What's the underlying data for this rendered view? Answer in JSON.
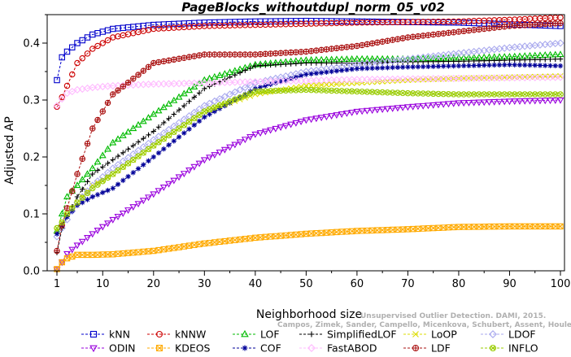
{
  "chart_data": {
    "type": "line",
    "title": "PageBlocks_withoutdupl_norm_05_v02",
    "xlabel": "Neighborhood size",
    "ylabel": "Adjusted AP",
    "xlim": [
      1,
      100
    ],
    "ylim": [
      0,
      0.45
    ],
    "x_ticks": [
      1,
      10,
      20,
      30,
      40,
      50,
      60,
      70,
      80,
      90,
      100
    ],
    "y_ticks": [
      0.0,
      0.1,
      0.2,
      0.3,
      0.4
    ],
    "y_tick_labels": [
      "0.0",
      "0.1",
      "0.2",
      "0.3",
      "0.4"
    ],
    "grid": false,
    "legend_placement": "bottom",
    "watermark": {
      "line1": "Unsupervised Outlier Detection. DAMI, 2015.",
      "line2": "Campos, Zimek, Sander, Campello, Micenkova, Schubert, Assent, Houle"
    },
    "series": [
      {
        "name": "kNN",
        "color": "#0000cc",
        "marker": "square",
        "x": [
          1,
          2,
          3,
          5,
          8,
          12,
          20,
          30,
          40,
          50,
          60,
          70,
          80,
          90,
          100
        ],
        "values": [
          0.335,
          0.375,
          0.385,
          0.4,
          0.415,
          0.425,
          0.432,
          0.436,
          0.438,
          0.439,
          0.438,
          0.437,
          0.436,
          0.433,
          0.43
        ]
      },
      {
        "name": "kNNW",
        "color": "#cc0000",
        "marker": "circle",
        "x": [
          1,
          2,
          3,
          5,
          8,
          12,
          20,
          30,
          40,
          50,
          60,
          70,
          80,
          90,
          100
        ],
        "values": [
          0.288,
          0.305,
          0.325,
          0.365,
          0.39,
          0.41,
          0.425,
          0.43,
          0.432,
          0.434,
          0.436,
          0.437,
          0.438,
          0.441,
          0.445
        ]
      },
      {
        "name": "LOF",
        "color": "#00bb00",
        "marker": "triangle-up",
        "x": [
          1,
          2,
          3,
          5,
          8,
          12,
          20,
          30,
          40,
          50,
          60,
          70,
          80,
          90,
          100
        ],
        "values": [
          0.07,
          0.1,
          0.13,
          0.15,
          0.18,
          0.225,
          0.275,
          0.335,
          0.362,
          0.37,
          0.372,
          0.372,
          0.374,
          0.376,
          0.38
        ]
      },
      {
        "name": "SimplifiedLOF",
        "color": "#000000",
        "marker": "plus",
        "x": [
          1,
          2,
          3,
          5,
          8,
          12,
          20,
          30,
          40,
          50,
          60,
          70,
          80,
          90,
          100
        ],
        "values": [
          0.032,
          0.075,
          0.095,
          0.13,
          0.17,
          0.195,
          0.245,
          0.32,
          0.36,
          0.365,
          0.365,
          0.367,
          0.368,
          0.37,
          0.372
        ]
      },
      {
        "name": "LoOP",
        "color": "#dddd00",
        "marker": "cross",
        "x": [
          1,
          2,
          3,
          5,
          8,
          12,
          20,
          30,
          40,
          50,
          60,
          70,
          80,
          90,
          100
        ],
        "values": [
          0.07,
          0.085,
          0.1,
          0.12,
          0.15,
          0.17,
          0.22,
          0.28,
          0.31,
          0.325,
          0.33,
          0.335,
          0.338,
          0.34,
          0.342
        ]
      },
      {
        "name": "LDOF",
        "color": "#aaaaee",
        "marker": "diamond",
        "x": [
          1,
          2,
          3,
          5,
          8,
          12,
          20,
          30,
          40,
          50,
          60,
          70,
          80,
          90,
          100
        ],
        "values": [
          0.06,
          0.075,
          0.09,
          0.12,
          0.15,
          0.18,
          0.23,
          0.29,
          0.33,
          0.35,
          0.362,
          0.372,
          0.382,
          0.392,
          0.4
        ]
      },
      {
        "name": "ODIN",
        "color": "#9900dd",
        "marker": "triangle-down",
        "x": [
          1,
          2,
          3,
          5,
          8,
          12,
          20,
          30,
          40,
          50,
          60,
          70,
          80,
          90,
          100
        ],
        "values": [
          0.002,
          0.015,
          0.03,
          0.045,
          0.065,
          0.09,
          0.135,
          0.195,
          0.24,
          0.265,
          0.28,
          0.288,
          0.295,
          0.298,
          0.3
        ]
      },
      {
        "name": "KDEOS",
        "color": "#ffaa00",
        "marker": "square-x",
        "x": [
          1,
          2,
          3,
          5,
          8,
          12,
          20,
          30,
          40,
          50,
          60,
          70,
          80,
          90,
          100
        ],
        "values": [
          0.003,
          0.015,
          0.022,
          0.028,
          0.028,
          0.029,
          0.035,
          0.048,
          0.058,
          0.065,
          0.07,
          0.073,
          0.077,
          0.078,
          0.078
        ]
      },
      {
        "name": "COF",
        "color": "#000099",
        "marker": "asterisk",
        "x": [
          1,
          2,
          3,
          5,
          8,
          12,
          20,
          30,
          40,
          50,
          60,
          70,
          80,
          90,
          100
        ],
        "values": [
          0.065,
          0.08,
          0.095,
          0.115,
          0.13,
          0.145,
          0.2,
          0.27,
          0.32,
          0.345,
          0.355,
          0.358,
          0.36,
          0.362,
          0.36
        ]
      },
      {
        "name": "FastABOD",
        "color": "#ffbbff",
        "marker": "diamond",
        "x": [
          1,
          2,
          3,
          5,
          8,
          12,
          20,
          30,
          40,
          50,
          60,
          70,
          80,
          90,
          100
        ],
        "values": [
          0.29,
          0.302,
          0.312,
          0.318,
          0.322,
          0.325,
          0.328,
          0.33,
          0.332,
          0.334,
          0.336,
          0.337,
          0.338,
          0.339,
          0.34
        ]
      },
      {
        "name": "LDF",
        "color": "#aa1111",
        "marker": "circle-plus",
        "x": [
          1,
          2,
          3,
          5,
          8,
          12,
          20,
          30,
          40,
          50,
          60,
          70,
          80,
          90,
          100
        ],
        "values": [
          0.035,
          0.08,
          0.11,
          0.17,
          0.25,
          0.31,
          0.365,
          0.38,
          0.38,
          0.385,
          0.395,
          0.41,
          0.42,
          0.43,
          0.435
        ]
      },
      {
        "name": "INFLO",
        "color": "#99cc00",
        "marker": "circle-x",
        "x": [
          1,
          2,
          3,
          5,
          8,
          12,
          20,
          30,
          40,
          50,
          60,
          70,
          80,
          90,
          100
        ],
        "values": [
          0.075,
          0.085,
          0.1,
          0.12,
          0.145,
          0.17,
          0.22,
          0.28,
          0.315,
          0.318,
          0.315,
          0.312,
          0.31,
          0.31,
          0.31
        ]
      }
    ]
  }
}
